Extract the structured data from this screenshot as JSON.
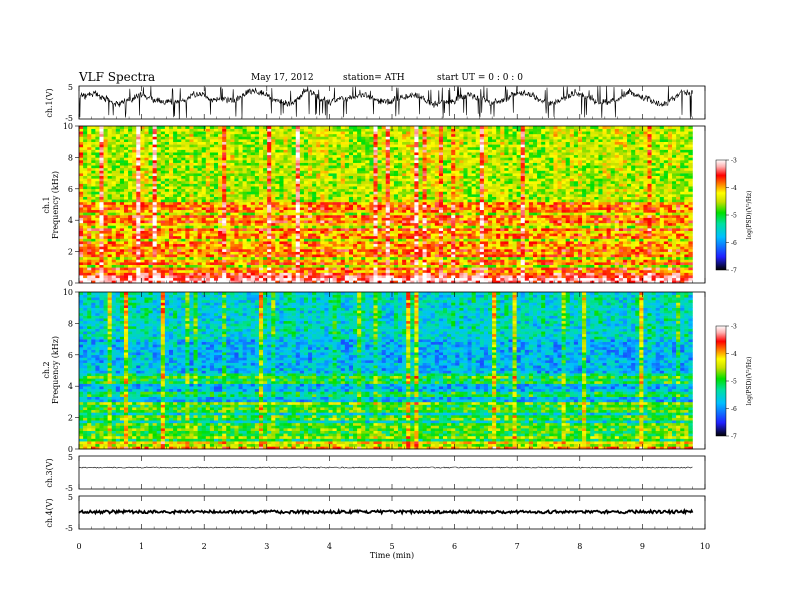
{
  "header": {
    "title": "VLF  Spectra",
    "date": "May 17, 2012",
    "station": "station= ATH",
    "start": "start  UT =   0 : 0  : 0"
  },
  "chart_data": [
    {
      "type": "line",
      "panel": "ch1-waveform",
      "ylabel": "ch.1(V)",
      "ylim": [
        -5,
        5
      ],
      "yticks": [
        "5",
        "-5"
      ],
      "x_range_min": [
        0,
        9.8
      ],
      "description_values": {
        "baseline_mean_V": 1.5,
        "excursions_min_V": -5,
        "excursions_max_V": 5
      }
    },
    {
      "type": "heatmap",
      "panel": "ch1-spectrogram",
      "ylabel": "ch.1\nFrequency (kHz)",
      "ylim": [
        0,
        10
      ],
      "yticks": [
        "0",
        "2",
        "4",
        "6",
        "8",
        "10"
      ],
      "x_range_min": [
        0,
        9.8
      ],
      "colorbar": {
        "label": "log(PSD)(V²/Hz)",
        "range": [
          -7,
          -3
        ],
        "ticks": [
          "-3",
          "-4",
          "-5",
          "-6",
          "-7"
        ]
      },
      "bands_khz": [
        0.2,
        0.5,
        0.9,
        1.3,
        1.8,
        2.1,
        2.5,
        3.0,
        3.4,
        3.9,
        4.2,
        4.7,
        5.0
      ],
      "typical_logpsd": -4.6
    },
    {
      "type": "heatmap",
      "panel": "ch2-spectrogram",
      "ylabel": "ch.2\nFrequency (kHz)",
      "ylim": [
        0,
        10
      ],
      "yticks": [
        "0",
        "2",
        "4",
        "6",
        "8",
        "10"
      ],
      "x_range_min": [
        0,
        9.8
      ],
      "colorbar": {
        "label": "log(PSD)(V²/Hz)",
        "range": [
          -7,
          -3
        ],
        "ticks": [
          "-3",
          "-4",
          "-5",
          "-6",
          "-7"
        ]
      },
      "bands_khz": [
        0.1,
        0.4,
        0.8,
        1.2,
        1.5,
        2.0,
        2.5,
        2.9,
        3.5,
        4.3,
        4.6
      ],
      "typical_logpsd": -5.6
    },
    {
      "type": "line",
      "panel": "ch3-waveform",
      "ylabel": "ch.3(V)",
      "ylim": [
        -5,
        5
      ],
      "yticks": [
        "5",
        "-5"
      ],
      "level_V": 1.5
    },
    {
      "type": "line",
      "panel": "ch4-waveform",
      "ylabel": "ch.4(V)",
      "ylim": [
        -5,
        5
      ],
      "yticks": [
        "5",
        "-5"
      ],
      "level_V": 0.2
    }
  ],
  "xaxis": {
    "label": "Time  (min)",
    "ticks": [
      "0",
      "1",
      "2",
      "3",
      "4",
      "5",
      "6",
      "7",
      "8",
      "9",
      "10"
    ],
    "xlim": [
      0,
      10
    ]
  },
  "colors": {
    "scale": [
      "#000000",
      "#2020ff",
      "#00bfff",
      "#00e0a0",
      "#00e000",
      "#c8e000",
      "#ffff00",
      "#ff8000",
      "#ff0000",
      "#ffb0b0",
      "#ffffff"
    ]
  }
}
